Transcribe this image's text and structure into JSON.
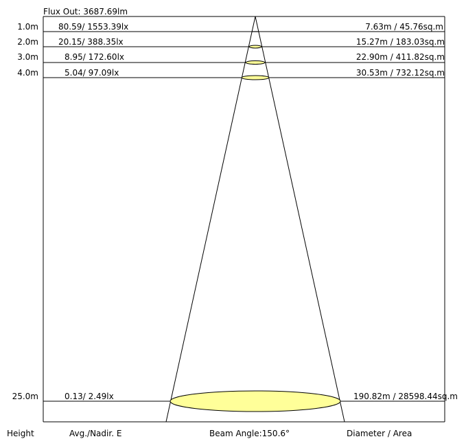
{
  "flux_out": "Flux Out: 3687.69lm",
  "beam_angle": "Beam Angle:150.6°",
  "footer": {
    "height_label": "Height",
    "illuminance_label": "Avg./Nadir. E",
    "diameter_label": "Diameter / Area"
  },
  "rows": [
    {
      "height": "1.0m",
      "illuminance": "80.59/ 1553.39lx",
      "diameter_area": "7.63m / 45.76sq.m"
    },
    {
      "height": "2.0m",
      "illuminance": "20.15/ 388.35lx",
      "diameter_area": "15.27m / 183.03sq.m"
    },
    {
      "height": "3.0m",
      "illuminance": "8.95/ 172.60lx",
      "diameter_area": "22.90m / 411.82sq.m"
    },
    {
      "height": "4.0m",
      "illuminance": "5.04/ 97.09lx",
      "diameter_area": "30.53m / 732.12sq.m"
    },
    {
      "height": "25.0m",
      "illuminance": "0.13/ 2.49lx",
      "diameter_area": "190.82m / 28598.44sq.m"
    }
  ],
  "colors": {
    "beam_fill": "#ffff99",
    "line": "#000000"
  }
}
